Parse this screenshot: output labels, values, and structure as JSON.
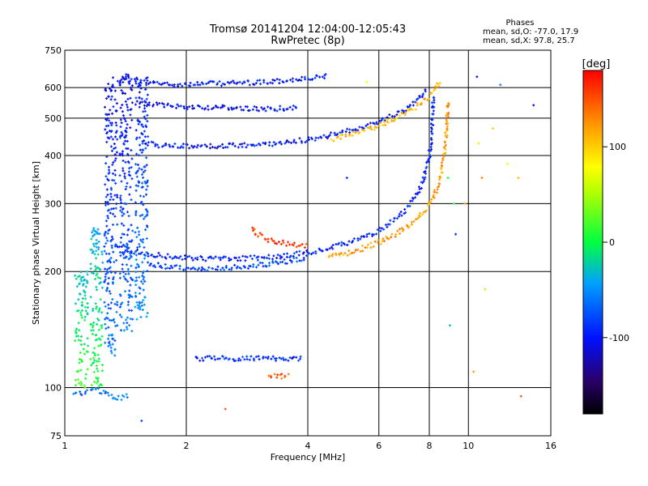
{
  "chart_data": {
    "type": "scatter",
    "title": "Tromsø 20141204 12:04:00-12:05:43",
    "subtitle": "RwPretec (8p)",
    "xlabel": "Frequency [MHz]",
    "ylabel": "Stationary phase Virtual Height [km]",
    "x_scale": "log",
    "y_scale": "log",
    "xlim": [
      1,
      16
    ],
    "ylim": [
      75,
      750
    ],
    "x_ticks": [
      1,
      2,
      4,
      6,
      8,
      10,
      16
    ],
    "x_tick_labels": [
      "1",
      "2",
      "4",
      "6",
      "8",
      "10",
      "16"
    ],
    "y_ticks": [
      75,
      100,
      200,
      300,
      400,
      500,
      600,
      750
    ],
    "y_tick_labels": [
      "75",
      "100",
      "200",
      "300",
      "400",
      "500",
      "600",
      "750"
    ],
    "grid": true,
    "color_scale": {
      "label": "[deg]",
      "min": -180,
      "max": 180,
      "ticks": [
        100,
        0,
        -100
      ],
      "tick_labels": [
        "100",
        "0",
        "-100"
      ]
    },
    "phase_info": {
      "heading": "Phases",
      "line_o": "mean, sd,O: -77.0, 17.9",
      "line_x": "mean, sd,X:  97.8, 25.7"
    },
    "traces": [
      {
        "x": [
          1.35,
          1.4,
          1.45,
          1.5,
          1.55,
          1.6,
          1.8,
          2.0,
          2.4,
          3.0,
          3.5,
          4.0,
          4.5
        ],
        "y": [
          620,
          625,
          628,
          630,
          625,
          618,
          612,
          612,
          615,
          618,
          625,
          632,
          642
        ],
        "phase": -100
      },
      {
        "x": [
          1.5,
          1.7,
          2.0,
          2.5,
          3.0,
          3.5,
          3.8
        ],
        "y": [
          548,
          540,
          535,
          532,
          528,
          530,
          535
        ],
        "phase": -105
      },
      {
        "x": [
          1.55,
          1.7,
          2.0,
          2.5,
          3.0,
          3.5,
          4.0,
          4.5,
          5.0,
          5.5,
          6.0,
          6.5,
          7.0,
          7.5,
          7.9
        ],
        "y": [
          432,
          425,
          422,
          423,
          426,
          432,
          440,
          450,
          462,
          475,
          490,
          508,
          528,
          560,
          600
        ],
        "phase": -100
      },
      {
        "x": [
          4.6,
          5.0,
          5.5,
          6.0,
          6.5,
          7.0,
          7.5,
          8.0,
          8.3,
          8.6
        ],
        "y": [
          440,
          450,
          462,
          478,
          495,
          515,
          540,
          568,
          598,
          630
        ],
        "phase": 110
      },
      {
        "x": [
          1.35,
          1.45,
          1.6,
          1.8,
          2.0,
          2.3,
          2.7,
          3.0,
          3.4,
          3.8,
          4.2,
          4.6,
          5.0,
          5.5,
          6.0,
          6.5,
          7.0,
          7.5,
          7.8,
          8.0,
          8.1,
          8.15,
          8.2
        ],
        "y": [
          235,
          226,
          222,
          219,
          217,
          216,
          216,
          217,
          219,
          222,
          226,
          231,
          237,
          245,
          256,
          270,
          290,
          320,
          355,
          395,
          440,
          500,
          580
        ],
        "phase": -95
      },
      {
        "x": [
          4.5,
          5.0,
          5.5,
          6.0,
          6.5,
          7.0,
          7.5,
          8.0,
          8.4,
          8.6,
          8.75,
          8.85,
          8.9
        ],
        "y": [
          218,
          223,
          230,
          238,
          248,
          260,
          275,
          298,
          330,
          370,
          420,
          490,
          560
        ],
        "phase": 120
      },
      {
        "x": [
          1.6,
          1.8,
          2.0,
          2.4,
          2.8,
          3.2,
          3.6,
          4.0
        ],
        "y": [
          210,
          206,
          204,
          204,
          206,
          209,
          213,
          218
        ],
        "phase": -80
      },
      {
        "x": [
          2.9,
          3.0,
          3.2,
          3.4,
          3.6,
          3.8,
          4.0
        ],
        "y": [
          262,
          250,
          242,
          238,
          236,
          234,
          232
        ],
        "phase": 160
      },
      {
        "x": [
          2.1,
          2.3,
          2.6,
          2.9,
          3.3,
          3.6,
          3.9
        ],
        "y": [
          119,
          119,
          119,
          119,
          119,
          119,
          119
        ],
        "phase": -90
      },
      {
        "x": [
          3.2,
          3.4,
          3.6
        ],
        "y": [
          108,
          107,
          107
        ],
        "phase": 150
      },
      {
        "x": [
          1.05,
          1.12,
          1.2,
          1.3,
          1.38,
          1.45
        ],
        "y": [
          96,
          97,
          99,
          95,
          94,
          96
        ],
        "phase": -60
      }
    ],
    "columns": [
      {
        "x": 1.3,
        "ymin": 120,
        "ymax": 640,
        "phase": -110
      },
      {
        "x": 1.42,
        "ymin": 140,
        "ymax": 650,
        "phase": -110
      },
      {
        "x": 1.55,
        "ymin": 150,
        "ymax": 640,
        "phase": -100
      },
      {
        "x": 1.2,
        "ymin": 100,
        "ymax": 260,
        "phase": -40
      },
      {
        "x": 1.1,
        "ymin": 100,
        "ymax": 200,
        "phase": -30
      }
    ],
    "scatter": [
      {
        "x": 8.9,
        "y": 350,
        "phase": 0
      },
      {
        "x": 9.2,
        "y": 300,
        "phase": 10
      },
      {
        "x": 9.3,
        "y": 250,
        "phase": -90
      },
      {
        "x": 9.8,
        "y": 300,
        "phase": 120
      },
      {
        "x": 10.5,
        "y": 640,
        "phase": -100
      },
      {
        "x": 10.6,
        "y": 430,
        "phase": 90
      },
      {
        "x": 10.8,
        "y": 350,
        "phase": 130
      },
      {
        "x": 11.0,
        "y": 180,
        "phase": 50
      },
      {
        "x": 11.5,
        "y": 470,
        "phase": 100
      },
      {
        "x": 12.0,
        "y": 610,
        "phase": -60
      },
      {
        "x": 12.5,
        "y": 380,
        "phase": 80
      },
      {
        "x": 13.3,
        "y": 350,
        "phase": 110
      },
      {
        "x": 13.5,
        "y": 95,
        "phase": 150
      },
      {
        "x": 14.5,
        "y": 540,
        "phase": -100
      },
      {
        "x": 9.0,
        "y": 145,
        "phase": -30
      },
      {
        "x": 10.3,
        "y": 110,
        "phase": 120
      },
      {
        "x": 5.0,
        "y": 350,
        "phase": -90
      },
      {
        "x": 5.6,
        "y": 620,
        "phase": 80
      },
      {
        "x": 2.5,
        "y": 88,
        "phase": 150
      },
      {
        "x": 1.55,
        "y": 82,
        "phase": -80
      }
    ]
  }
}
